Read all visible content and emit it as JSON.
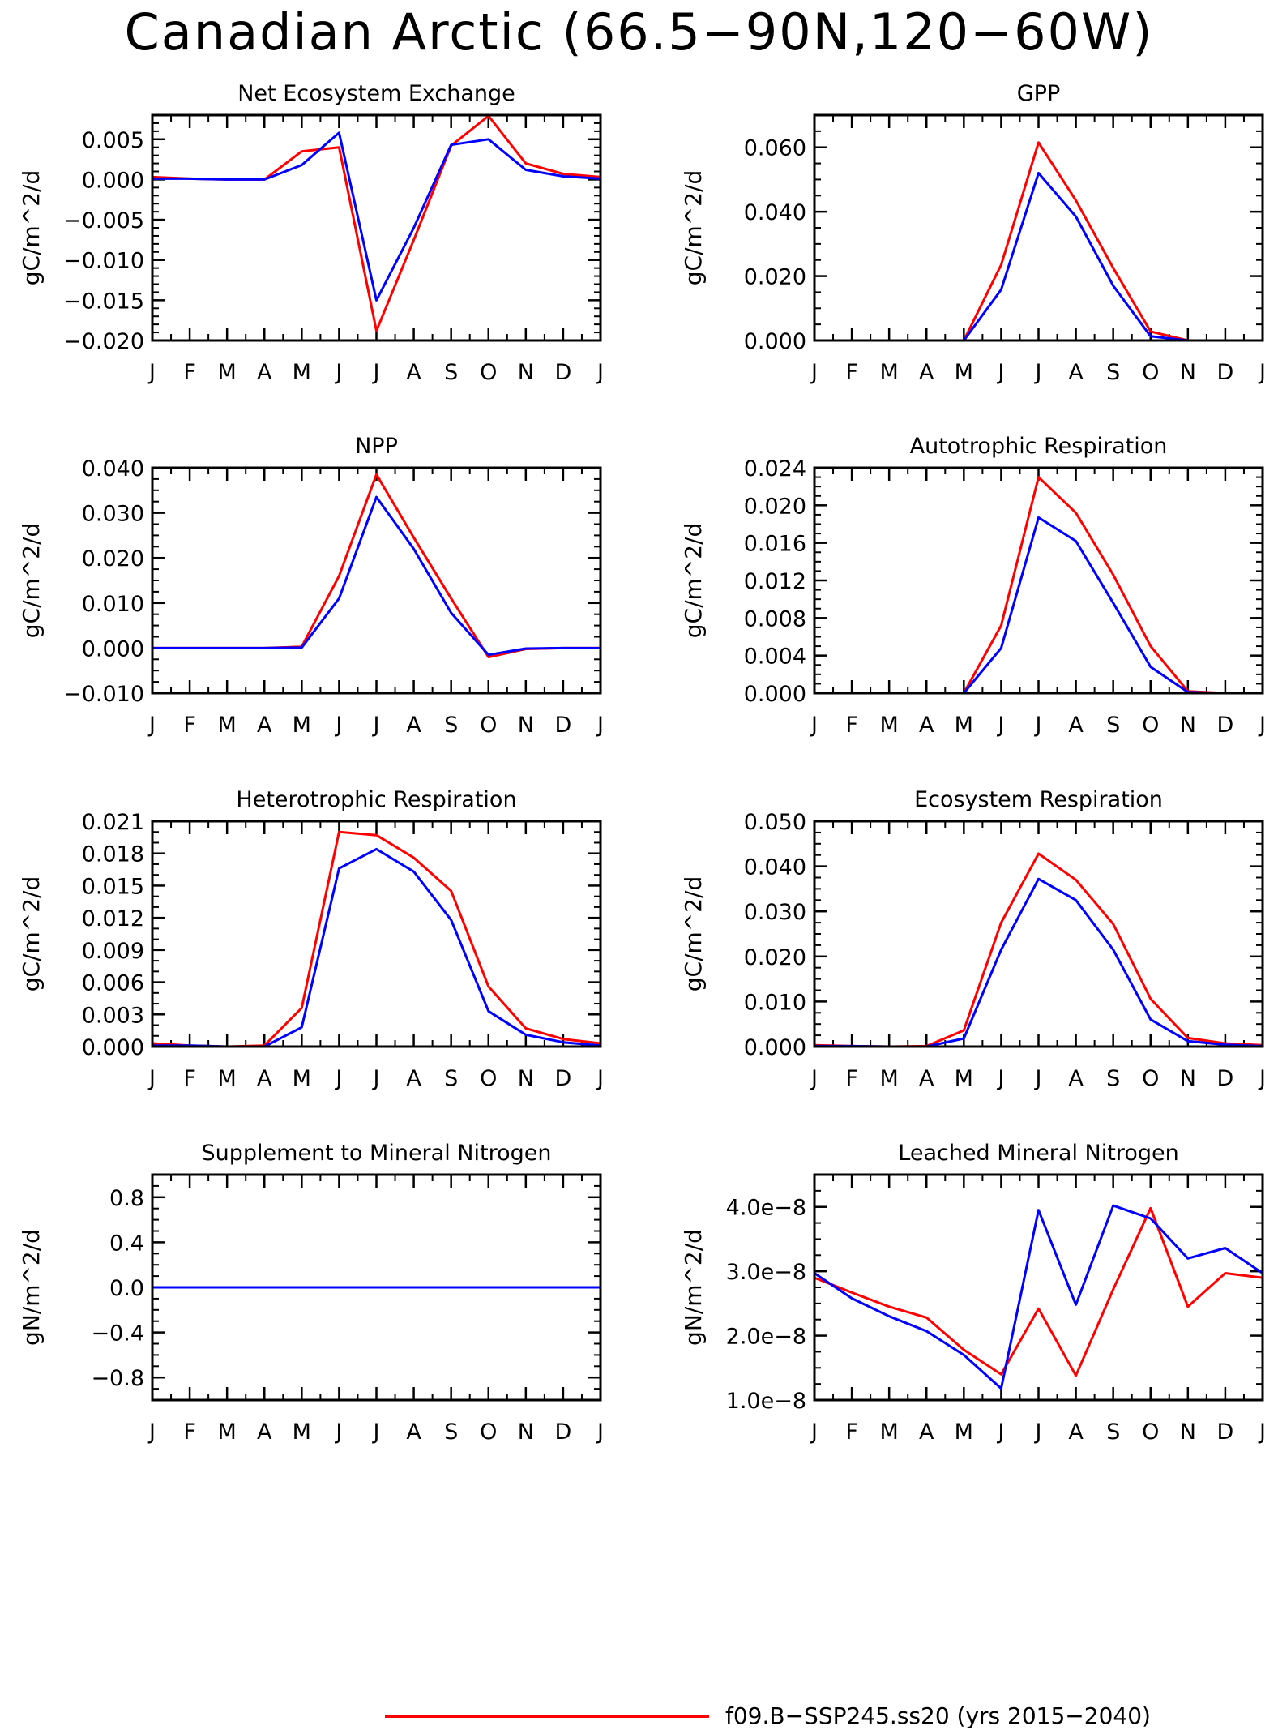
{
  "title": "Canadian Arctic (66.5−90N,120−60W)",
  "colors": {
    "red": "#ff0000",
    "blue": "#0000ff",
    "axis": "#000000"
  },
  "legend": [
    {
      "label": "f09.B−SSP245.ss20 (yrs 2015−2040)",
      "color": "#ff0000"
    }
  ],
  "chart_data": [
    {
      "type": "line",
      "title": "Net Ecosystem Exchange",
      "ylabel": "gC/m^2/d",
      "categories": [
        "J",
        "F",
        "M",
        "A",
        "M",
        "J",
        "J",
        "A",
        "S",
        "O",
        "N",
        "D",
        "J"
      ],
      "ylim": [
        -0.02,
        0.008
      ],
      "yticks": [
        -0.02,
        -0.015,
        -0.01,
        -0.005,
        0.0,
        0.005
      ],
      "yticklabels": [
        "−0.020",
        "−0.015",
        "−0.010",
        "−0.005",
        "0.000",
        "0.005"
      ],
      "yminor": 0.001,
      "series": [
        {
          "color": "#ff0000",
          "values": [
            0.0003,
            0.0001,
            0.0,
            0.0,
            0.0035,
            0.004,
            -0.0188,
            -0.0075,
            0.0042,
            0.0079,
            0.002,
            0.0007,
            0.0003
          ]
        },
        {
          "color": "#0000ff",
          "values": [
            0.0001,
            0.0001,
            0.0,
            0.0,
            0.0018,
            0.0058,
            -0.015,
            -0.006,
            0.0043,
            0.005,
            0.0012,
            0.0004,
            0.0001
          ]
        }
      ]
    },
    {
      "type": "line",
      "title": "GPP",
      "ylabel": "gC/m^2/d",
      "categories": [
        "J",
        "F",
        "M",
        "A",
        "M",
        "J",
        "J",
        "A",
        "S",
        "O",
        "N",
        "D",
        "J"
      ],
      "ylim": [
        0.0,
        0.07
      ],
      "yticks": [
        0.0,
        0.02,
        0.04,
        0.06
      ],
      "yticklabels": [
        "0.000",
        "0.020",
        "0.040",
        "0.060"
      ],
      "yminor": 0.005,
      "series": [
        {
          "color": "#ff0000",
          "values": [
            0,
            0,
            0,
            0,
            0,
            0.0235,
            0.0615,
            0.0435,
            0.0225,
            0.0028,
            0,
            0,
            0
          ]
        },
        {
          "color": "#0000ff",
          "values": [
            0,
            0,
            0,
            0,
            0,
            0.0158,
            0.052,
            0.0385,
            0.017,
            0.0013,
            0,
            0,
            0
          ]
        }
      ]
    },
    {
      "type": "line",
      "title": "NPP",
      "ylabel": "gC/m^2/d",
      "categories": [
        "J",
        "F",
        "M",
        "A",
        "M",
        "J",
        "J",
        "A",
        "S",
        "O",
        "N",
        "D",
        "J"
      ],
      "ylim": [
        -0.01,
        0.04
      ],
      "yticks": [
        -0.01,
        0.0,
        0.01,
        0.02,
        0.03,
        0.04
      ],
      "yticklabels": [
        "−0.010",
        "0.000",
        "0.010",
        "0.020",
        "0.030",
        "0.040"
      ],
      "yminor": 0.0025,
      "series": [
        {
          "color": "#ff0000",
          "values": [
            0,
            0,
            0,
            0,
            0.0003,
            0.016,
            0.0385,
            0.0245,
            0.011,
            -0.002,
            -0.0002,
            0,
            0
          ]
        },
        {
          "color": "#0000ff",
          "values": [
            0,
            0,
            0,
            0,
            0.0001,
            0.011,
            0.0335,
            0.022,
            0.0078,
            -0.0015,
            -0.0001,
            0,
            0
          ]
        }
      ]
    },
    {
      "type": "line",
      "title": "Autotrophic Respiration",
      "ylabel": "gC/m^2/d",
      "categories": [
        "J",
        "F",
        "M",
        "A",
        "M",
        "J",
        "J",
        "A",
        "S",
        "O",
        "N",
        "D",
        "J"
      ],
      "ylim": [
        0.0,
        0.024
      ],
      "yticks": [
        0.0,
        0.004,
        0.008,
        0.012,
        0.016,
        0.02,
        0.024
      ],
      "yticklabels": [
        "0.000",
        "0.004",
        "0.008",
        "0.012",
        "0.016",
        "0.020",
        "0.024"
      ],
      "yminor": 0.001,
      "series": [
        {
          "color": "#ff0000",
          "values": [
            0,
            0,
            0,
            0,
            0,
            0.0072,
            0.023,
            0.0192,
            0.0126,
            0.005,
            0.0002,
            0,
            0
          ]
        },
        {
          "color": "#0000ff",
          "values": [
            0,
            0,
            0,
            0,
            0,
            0.0048,
            0.0187,
            0.0162,
            0.0096,
            0.0028,
            0.0001,
            0,
            0
          ]
        }
      ]
    },
    {
      "type": "line",
      "title": "Heterotrophic Respiration",
      "ylabel": "gC/m^2/d",
      "categories": [
        "J",
        "F",
        "M",
        "A",
        "M",
        "J",
        "J",
        "A",
        "S",
        "O",
        "N",
        "D",
        "J"
      ],
      "ylim": [
        0.0,
        0.021
      ],
      "yticks": [
        0.0,
        0.003,
        0.006,
        0.009,
        0.012,
        0.015,
        0.018,
        0.021
      ],
      "yticklabels": [
        "0.000",
        "0.003",
        "0.006",
        "0.009",
        "0.012",
        "0.015",
        "0.018",
        "0.021"
      ],
      "yminor": 0.001,
      "series": [
        {
          "color": "#ff0000",
          "values": [
            0.0003,
            0.0001,
            0.0,
            0.0001,
            0.0036,
            0.02,
            0.0197,
            0.0176,
            0.0145,
            0.0056,
            0.0017,
            0.0007,
            0.0003
          ]
        },
        {
          "color": "#0000ff",
          "values": [
            0.0001,
            0.0001,
            0.0,
            0.0,
            0.0018,
            0.0166,
            0.0184,
            0.0163,
            0.0118,
            0.0033,
            0.0011,
            0.0004,
            0.0001
          ]
        }
      ]
    },
    {
      "type": "line",
      "title": "Ecosystem Respiration",
      "ylabel": "gC/m^2/d",
      "categories": [
        "J",
        "F",
        "M",
        "A",
        "M",
        "J",
        "J",
        "A",
        "S",
        "O",
        "N",
        "D",
        "J"
      ],
      "ylim": [
        0.0,
        0.05
      ],
      "yticks": [
        0.0,
        0.01,
        0.02,
        0.03,
        0.04,
        0.05
      ],
      "yticklabels": [
        "0.000",
        "0.010",
        "0.020",
        "0.030",
        "0.040",
        "0.050"
      ],
      "yminor": 0.0025,
      "series": [
        {
          "color": "#ff0000",
          "values": [
            0.0003,
            0.0001,
            0.0,
            0.0001,
            0.0036,
            0.0275,
            0.0428,
            0.037,
            0.0272,
            0.0106,
            0.0019,
            0.0007,
            0.0003
          ]
        },
        {
          "color": "#0000ff",
          "values": [
            0.0001,
            0.0001,
            0.0,
            0.0,
            0.0018,
            0.0215,
            0.0372,
            0.0325,
            0.0215,
            0.006,
            0.0012,
            0.0004,
            0.0001
          ]
        }
      ]
    },
    {
      "type": "line",
      "title": "Supplement to Mineral Nitrogen",
      "ylabel": "gN/m^2/d",
      "categories": [
        "J",
        "F",
        "M",
        "A",
        "M",
        "J",
        "J",
        "A",
        "S",
        "O",
        "N",
        "D",
        "J"
      ],
      "ylim": [
        -1.0,
        1.0
      ],
      "yticks": [
        -0.8,
        -0.4,
        0.0,
        0.4,
        0.8
      ],
      "yticklabels": [
        "−0.8",
        "−0.4",
        "0.0",
        "0.4",
        "0.8"
      ],
      "yminor": 0.1,
      "series": [
        {
          "color": "#ff0000",
          "values": [
            0,
            0,
            0,
            0,
            0,
            0,
            0,
            0,
            0,
            0,
            0,
            0,
            0
          ]
        },
        {
          "color": "#0000ff",
          "values": [
            0,
            0,
            0,
            0,
            0,
            0,
            0,
            0,
            0,
            0,
            0,
            0,
            0
          ]
        }
      ]
    },
    {
      "type": "line",
      "title": "Leached Mineral Nitrogen",
      "ylabel": "gN/m^2/d",
      "categories": [
        "J",
        "F",
        "M",
        "A",
        "M",
        "J",
        "J",
        "A",
        "S",
        "O",
        "N",
        "D",
        "J"
      ],
      "ylim": [
        1e-08,
        4.5e-08
      ],
      "yticks": [
        1e-08,
        2e-08,
        3e-08,
        4e-08
      ],
      "yticklabels": [
        "1.0e−8",
        "2.0e−8",
        "3.0e−8",
        "4.0e−8"
      ],
      "yminor": 2.5e-09,
      "series": [
        {
          "color": "#ff0000",
          "values": [
            2.9e-08,
            2.67e-08,
            2.45e-08,
            2.28e-08,
            1.78e-08,
            1.4e-08,
            2.42e-08,
            1.38e-08,
            2.72e-08,
            3.98e-08,
            2.45e-08,
            2.97e-08,
            2.9e-08
          ]
        },
        {
          "color": "#0000ff",
          "values": [
            2.97e-08,
            2.58e-08,
            2.3e-08,
            2.07e-08,
            1.7e-08,
            1.18e-08,
            3.95e-08,
            2.48e-08,
            4.02e-08,
            3.82e-08,
            3.2e-08,
            3.36e-08,
            2.97e-08
          ]
        }
      ]
    }
  ]
}
